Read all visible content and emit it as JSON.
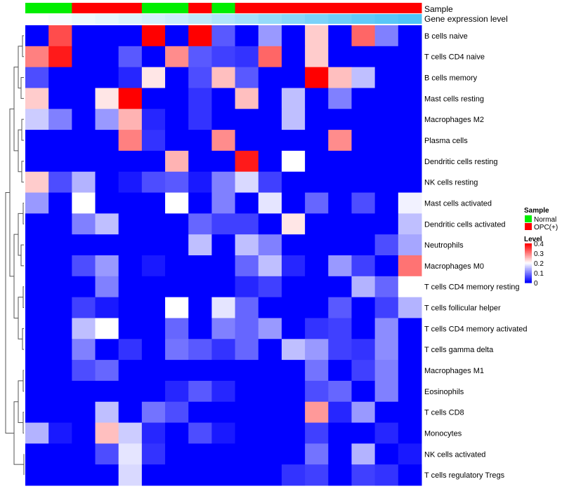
{
  "chart_data": {
    "type": "heatmap",
    "annotation_tracks": [
      {
        "name": "Sample",
        "values": [
          "Normal",
          "Normal",
          "OPC(+)",
          "OPC(+)",
          "OPC(+)",
          "Normal",
          "Normal",
          "OPC(+)",
          "Normal",
          "OPC(+)",
          "OPC(+)",
          "OPC(+)",
          "OPC(+)",
          "OPC(+)",
          "OPC(+)",
          "OPC(+)",
          "OPC(+)"
        ]
      },
      {
        "name": "Gene expression level",
        "values": [
          0.0,
          0.02,
          0.04,
          0.06,
          0.08,
          0.1,
          0.12,
          0.15,
          0.18,
          0.21,
          0.24,
          0.27,
          0.3,
          0.33,
          0.36,
          0.38,
          0.4
        ]
      }
    ],
    "rows": [
      "B cells naive",
      "T cells CD4 naive",
      "B cells memory",
      "Mast cells resting",
      "Macrophages M2",
      "Plasma cells",
      "Dendritic cells resting",
      "NK cells resting",
      "Mast cells activated",
      "Dendritic cells activated",
      "Neutrophils",
      "Macrophages M0",
      "T cells CD4 memory resting",
      "T cells follicular helper",
      "T cells CD4 memory activated",
      "T cells gamma delta",
      "Macrophages M1",
      "Eosinophils",
      "T cells CD8",
      "Monocytes",
      "NK cells activated",
      "T cells regulatory  Tregs"
    ],
    "values": [
      [
        0.0,
        0.34,
        0.0,
        0.0,
        0.0,
        0.4,
        0.0,
        0.4,
        0.07,
        0.0,
        0.12,
        0.0,
        0.24,
        0.0,
        0.32,
        0.1,
        0.0
      ],
      [
        0.3,
        0.38,
        0.0,
        0.0,
        0.07,
        0.0,
        0.29,
        0.07,
        0.05,
        0.04,
        0.32,
        0.0,
        0.24,
        0.0,
        0.0,
        0.0,
        0.0
      ],
      [
        0.06,
        0.0,
        0.0,
        0.0,
        0.03,
        0.22,
        0.0,
        0.06,
        0.25,
        0.07,
        0.0,
        0.0,
        0.4,
        0.25,
        0.15,
        0.0,
        0.0
      ],
      [
        0.24,
        0.0,
        0.0,
        0.22,
        0.4,
        0.0,
        0.0,
        0.04,
        0.0,
        0.25,
        0.0,
        0.15,
        0.0,
        0.1,
        0.0,
        0.0,
        0.0
      ],
      [
        0.16,
        0.1,
        0.0,
        0.12,
        0.26,
        0.03,
        0.0,
        0.04,
        0.0,
        0.0,
        0.0,
        0.15,
        0.0,
        0.0,
        0.0,
        0.0,
        0.0
      ],
      [
        0.0,
        0.0,
        0.0,
        0.0,
        0.3,
        0.04,
        0.0,
        0.0,
        0.29,
        0.0,
        0.0,
        0.0,
        0.0,
        0.29,
        0.0,
        0.0,
        0.0
      ],
      [
        0.0,
        0.0,
        0.0,
        0.0,
        0.0,
        0.0,
        0.26,
        0.0,
        0.0,
        0.38,
        0.0,
        0.2,
        0.0,
        0.0,
        0.0,
        0.0,
        0.0
      ],
      [
        0.24,
        0.06,
        0.14,
        0.0,
        0.02,
        0.06,
        0.07,
        0.02,
        0.1,
        0.17,
        0.05,
        0.0,
        0.0,
        0.0,
        0.0,
        0.0,
        0.0
      ],
      [
        0.12,
        0.0,
        0.2,
        0.0,
        0.0,
        0.0,
        0.2,
        0.0,
        0.1,
        0.0,
        0.18,
        0.0,
        0.08,
        0.0,
        0.06,
        0.0,
        0.19
      ],
      [
        0.0,
        0.0,
        0.1,
        0.15,
        0.0,
        0.0,
        0.0,
        0.08,
        0.05,
        0.05,
        0.0,
        0.22,
        0.0,
        0.0,
        0.0,
        0.0,
        0.15
      ],
      [
        0.0,
        0.0,
        0.0,
        0.0,
        0.0,
        0.0,
        0.0,
        0.15,
        0.0,
        0.15,
        0.1,
        0.0,
        0.0,
        0.0,
        0.0,
        0.06,
        0.13
      ],
      [
        0.0,
        0.0,
        0.06,
        0.12,
        0.0,
        0.02,
        0.0,
        0.0,
        0.0,
        0.08,
        0.15,
        0.03,
        0.0,
        0.12,
        0.05,
        0.0,
        0.31
      ],
      [
        0.0,
        0.0,
        0.0,
        0.1,
        0.0,
        0.0,
        0.0,
        0.0,
        0.0,
        0.03,
        0.05,
        0.0,
        0.0,
        0.0,
        0.14,
        0.08,
        0.2
      ],
      [
        0.0,
        0.0,
        0.05,
        0.02,
        0.0,
        0.0,
        0.2,
        0.0,
        0.18,
        0.08,
        0.0,
        0.0,
        0.0,
        0.07,
        0.0,
        0.05,
        0.14
      ],
      [
        0.0,
        0.0,
        0.15,
        0.2,
        0.0,
        0.0,
        0.08,
        0.0,
        0.1,
        0.08,
        0.12,
        0.0,
        0.04,
        0.05,
        0.0,
        0.11,
        0.0
      ],
      [
        0.0,
        0.0,
        0.1,
        0.0,
        0.04,
        0.0,
        0.09,
        0.07,
        0.04,
        0.08,
        0.0,
        0.15,
        0.12,
        0.05,
        0.04,
        0.11,
        0.0
      ],
      [
        0.0,
        0.0,
        0.06,
        0.08,
        0.0,
        0.0,
        0.0,
        0.0,
        0.0,
        0.0,
        0.0,
        0.0,
        0.09,
        0.0,
        0.05,
        0.1,
        0.0
      ],
      [
        0.0,
        0.0,
        0.0,
        0.0,
        0.0,
        0.0,
        0.03,
        0.07,
        0.03,
        0.0,
        0.0,
        0.0,
        0.06,
        0.08,
        0.0,
        0.1,
        0.0
      ],
      [
        0.0,
        0.0,
        0.0,
        0.15,
        0.0,
        0.09,
        0.06,
        0.0,
        0.0,
        0.0,
        0.0,
        0.0,
        0.28,
        0.03,
        0.12,
        0.0,
        0.0
      ],
      [
        0.14,
        0.02,
        0.0,
        0.25,
        0.16,
        0.03,
        0.0,
        0.06,
        0.02,
        0.0,
        0.0,
        0.0,
        0.05,
        0.0,
        0.0,
        0.03,
        0.0
      ],
      [
        0.0,
        0.0,
        0.0,
        0.06,
        0.18,
        0.04,
        0.0,
        0.0,
        0.0,
        0.0,
        0.0,
        0.0,
        0.09,
        0.0,
        0.14,
        0.0,
        0.02
      ],
      [
        0.0,
        0.0,
        0.0,
        0.0,
        0.17,
        0.0,
        0.0,
        0.0,
        0.0,
        0.0,
        0.0,
        0.04,
        0.05,
        0.0,
        0.05,
        0.04,
        0.0
      ]
    ],
    "sample_legend": {
      "title": "Sample",
      "entries": [
        {
          "label": "Normal",
          "color": "#00ee00"
        },
        {
          "label": "OPC(+)",
          "color": "#ff0000"
        }
      ]
    },
    "level_legend": {
      "title": "Level",
      "ticks": [
        "0.4",
        "0.3",
        "0.2",
        "0.1",
        "0"
      ],
      "tick_values": [
        0.4,
        0.3,
        0.2,
        0.1,
        0
      ],
      "range": [
        0,
        0.4
      ]
    },
    "colors": {
      "low": "#0000ff",
      "mid": "#ffffff",
      "high": "#ff0000",
      "annotation_low": "#ffffff",
      "annotation_high": "#4fc3f7"
    },
    "row_dendrogram": true
  }
}
